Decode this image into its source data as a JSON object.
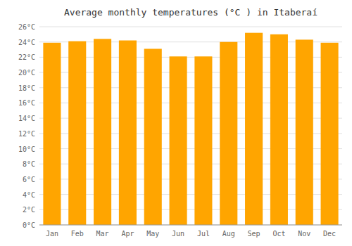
{
  "chart_data": {
    "type": "bar",
    "title": "Average monthly temperatures (°C ) in Itaberaí",
    "categories": [
      "Jan",
      "Feb",
      "Mar",
      "Apr",
      "May",
      "Jun",
      "Jul",
      "Aug",
      "Sep",
      "Oct",
      "Nov",
      "Dec"
    ],
    "values": [
      23.9,
      24.1,
      24.4,
      24.2,
      23.1,
      22.1,
      22.1,
      24.0,
      25.2,
      25.0,
      24.3,
      23.9
    ],
    "color": "#FFA500",
    "ylim": [
      0,
      26
    ],
    "yticks": [
      {
        "value": 0,
        "label": "0°C"
      },
      {
        "value": 2,
        "label": "2°C"
      },
      {
        "value": 4,
        "label": "4°C"
      },
      {
        "value": 6,
        "label": "6°C"
      },
      {
        "value": 8,
        "label": "8°C"
      },
      {
        "value": 10,
        "label": "10°C"
      },
      {
        "value": 12,
        "label": "12°C"
      },
      {
        "value": 14,
        "label": "14°C"
      },
      {
        "value": 16,
        "label": "16°C"
      },
      {
        "value": 18,
        "label": "18°C"
      },
      {
        "value": 20,
        "label": "20°C"
      },
      {
        "value": 22,
        "label": "22°C"
      },
      {
        "value": 24,
        "label": "24°C"
      },
      {
        "value": 26,
        "label": "26°C"
      }
    ],
    "grid": true
  }
}
